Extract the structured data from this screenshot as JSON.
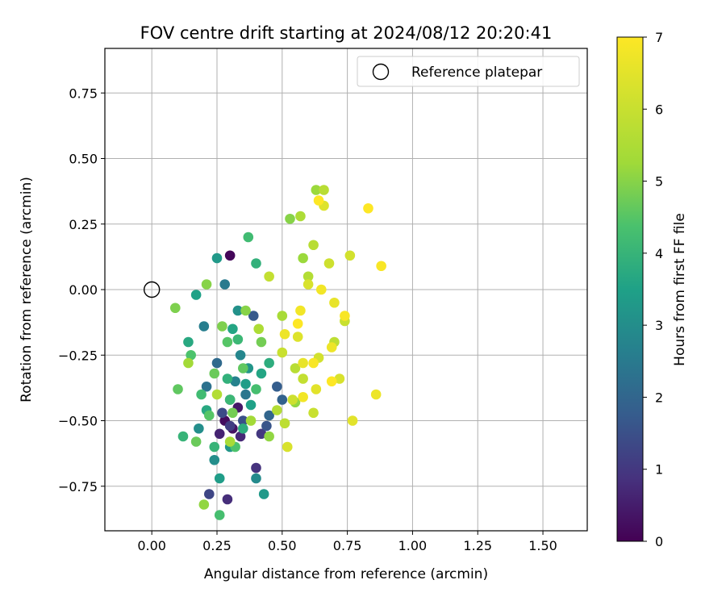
{
  "chart_data": {
    "type": "scatter",
    "title": "FOV centre drift starting at 2024/08/12 20:20:41",
    "xlabel": "Angular distance from reference (arcmin)",
    "ylabel": "Rotation from reference (arcmin)",
    "xlim": [
      -0.18,
      1.67
    ],
    "ylim": [
      -0.92,
      0.92
    ],
    "xticks": [
      0.0,
      0.25,
      0.5,
      0.75,
      1.0,
      1.25,
      1.5
    ],
    "xtick_labels": [
      "0.00",
      "0.25",
      "0.50",
      "0.75",
      "1.00",
      "1.25",
      "1.50"
    ],
    "yticks": [
      -0.75,
      -0.5,
      -0.25,
      0.0,
      0.25,
      0.5,
      0.75
    ],
    "ytick_labels": [
      "−0.75",
      "−0.50",
      "−0.25",
      "0.00",
      "0.25",
      "0.50",
      "0.75"
    ],
    "grid": true,
    "colormap": "viridis",
    "colorbar": {
      "label": "Hours from first FF file",
      "range": [
        0,
        7
      ],
      "ticks": [
        0,
        1,
        2,
        3,
        4,
        5,
        6,
        7
      ],
      "tick_labels": [
        "0",
        "1",
        "2",
        "3",
        "4",
        "5",
        "6",
        "7"
      ]
    },
    "legend": {
      "placement": "upper right",
      "entries": [
        {
          "label": "Reference platepar",
          "marker": "open-circle",
          "x": 0.0,
          "y": 0.0
        }
      ]
    },
    "series": [
      {
        "points": [
          [
            0.3,
            0.13,
            0.1
          ],
          [
            0.28,
            -0.5,
            0.2
          ],
          [
            0.31,
            -0.53,
            0.3
          ],
          [
            0.33,
            -0.45,
            0.4
          ],
          [
            0.26,
            -0.55,
            0.6
          ],
          [
            0.34,
            -0.56,
            0.7
          ],
          [
            0.29,
            -0.8,
            0.8
          ],
          [
            0.4,
            -0.68,
            0.9
          ],
          [
            0.42,
            -0.55,
            1.0
          ],
          [
            0.3,
            -0.52,
            1.1
          ],
          [
            0.22,
            -0.78,
            1.3
          ],
          [
            0.27,
            -0.47,
            1.4
          ],
          [
            0.35,
            -0.5,
            1.5
          ],
          [
            0.44,
            -0.52,
            1.6
          ],
          [
            0.39,
            -0.1,
            1.7
          ],
          [
            0.48,
            -0.37,
            1.8
          ],
          [
            0.5,
            -0.42,
            1.9
          ],
          [
            0.45,
            -0.48,
            2.0
          ],
          [
            0.25,
            -0.28,
            2.1
          ],
          [
            0.3,
            -0.42,
            2.2
          ],
          [
            0.21,
            -0.37,
            2.3
          ],
          [
            0.36,
            -0.4,
            2.4
          ],
          [
            0.28,
            0.02,
            2.5
          ],
          [
            0.2,
            -0.14,
            2.6
          ],
          [
            0.32,
            -0.35,
            2.7
          ],
          [
            0.34,
            -0.25,
            2.8
          ],
          [
            0.4,
            -0.72,
            2.9
          ],
          [
            0.18,
            -0.53,
            3.0
          ],
          [
            0.24,
            -0.65,
            3.0
          ],
          [
            0.33,
            -0.08,
            3.1
          ],
          [
            0.37,
            -0.3,
            3.2
          ],
          [
            0.3,
            -0.6,
            3.2
          ],
          [
            0.25,
            0.12,
            3.3
          ],
          [
            0.43,
            -0.78,
            3.3
          ],
          [
            0.36,
            -0.36,
            3.4
          ],
          [
            0.26,
            -0.72,
            3.4
          ],
          [
            0.17,
            -0.02,
            3.5
          ],
          [
            0.38,
            -0.44,
            3.5
          ],
          [
            0.31,
            -0.15,
            3.6
          ],
          [
            0.42,
            -0.32,
            3.6
          ],
          [
            0.21,
            -0.46,
            3.7
          ],
          [
            0.14,
            -0.2,
            3.7
          ],
          [
            0.35,
            -0.53,
            3.8
          ],
          [
            0.45,
            -0.28,
            3.8
          ],
          [
            0.4,
            0.1,
            3.9
          ],
          [
            0.29,
            -0.34,
            3.9
          ],
          [
            0.12,
            -0.56,
            4.0
          ],
          [
            0.24,
            -0.6,
            4.0
          ],
          [
            0.33,
            -0.19,
            4.1
          ],
          [
            0.3,
            -0.42,
            4.1
          ],
          [
            0.19,
            -0.4,
            4.2
          ],
          [
            0.37,
            0.2,
            4.2
          ],
          [
            0.26,
            -0.86,
            4.3
          ],
          [
            0.4,
            -0.38,
            4.3
          ],
          [
            0.15,
            -0.25,
            4.4
          ],
          [
            0.32,
            -0.6,
            4.4
          ],
          [
            0.22,
            -0.48,
            4.5
          ],
          [
            0.29,
            -0.2,
            4.5
          ],
          [
            0.1,
            -0.38,
            4.6
          ],
          [
            0.35,
            -0.3,
            4.6
          ],
          [
            0.24,
            -0.32,
            4.7
          ],
          [
            0.17,
            -0.58,
            4.7
          ],
          [
            0.31,
            -0.47,
            4.8
          ],
          [
            0.42,
            -0.2,
            4.8
          ],
          [
            0.09,
            -0.07,
            4.9
          ],
          [
            0.27,
            -0.14,
            4.9
          ],
          [
            0.21,
            0.02,
            5.0
          ],
          [
            0.36,
            -0.08,
            5.0
          ],
          [
            0.53,
            0.27,
            5.0
          ],
          [
            0.55,
            -0.43,
            5.1
          ],
          [
            0.2,
            -0.82,
            5.1
          ],
          [
            0.45,
            -0.56,
            5.1
          ],
          [
            0.58,
            0.12,
            5.2
          ],
          [
            0.63,
            0.38,
            5.2
          ],
          [
            0.38,
            -0.5,
            5.3
          ],
          [
            0.14,
            -0.28,
            5.3
          ],
          [
            0.3,
            -0.58,
            5.4
          ],
          [
            0.5,
            -0.1,
            5.4
          ],
          [
            0.57,
            0.28,
            5.5
          ],
          [
            0.41,
            -0.15,
            5.5
          ],
          [
            0.25,
            -0.4,
            5.6
          ],
          [
            0.6,
            0.05,
            5.6
          ],
          [
            0.48,
            -0.46,
            5.6
          ],
          [
            0.66,
            0.38,
            5.7
          ],
          [
            0.55,
            -0.3,
            5.7
          ],
          [
            0.62,
            0.17,
            5.7
          ],
          [
            0.51,
            -0.51,
            5.8
          ],
          [
            0.7,
            -0.2,
            5.8
          ],
          [
            0.58,
            -0.34,
            5.9
          ],
          [
            0.45,
            0.05,
            5.9
          ],
          [
            0.74,
            -0.12,
            6.0
          ],
          [
            0.62,
            -0.47,
            6.0
          ],
          [
            0.5,
            -0.24,
            6.0
          ],
          [
            0.68,
            0.1,
            6.1
          ],
          [
            0.54,
            -0.42,
            6.1
          ],
          [
            0.76,
            0.13,
            6.2
          ],
          [
            0.64,
            -0.26,
            6.2
          ],
          [
            0.52,
            -0.6,
            6.3
          ],
          [
            0.72,
            -0.34,
            6.3
          ],
          [
            0.6,
            0.02,
            6.3
          ],
          [
            0.66,
            0.32,
            6.4
          ],
          [
            0.56,
            -0.18,
            6.4
          ],
          [
            0.77,
            -0.5,
            6.5
          ],
          [
            0.63,
            -0.38,
            6.5
          ],
          [
            0.7,
            -0.05,
            6.6
          ],
          [
            0.58,
            -0.28,
            6.6
          ],
          [
            0.86,
            -0.4,
            6.7
          ],
          [
            0.69,
            -0.22,
            6.7
          ],
          [
            0.57,
            -0.08,
            6.8
          ],
          [
            0.65,
            0.0,
            6.8
          ],
          [
            0.74,
            -0.1,
            6.9
          ],
          [
            0.88,
            0.09,
            6.9
          ],
          [
            0.64,
            0.34,
            7.0
          ],
          [
            0.83,
            0.31,
            7.0
          ],
          [
            0.69,
            -0.35,
            7.0
          ],
          [
            0.56,
            -0.13,
            7.0
          ],
          [
            0.62,
            -0.28,
            6.9
          ],
          [
            0.58,
            -0.41,
            6.8
          ],
          [
            0.51,
            -0.17,
            6.7
          ]
        ]
      }
    ]
  }
}
